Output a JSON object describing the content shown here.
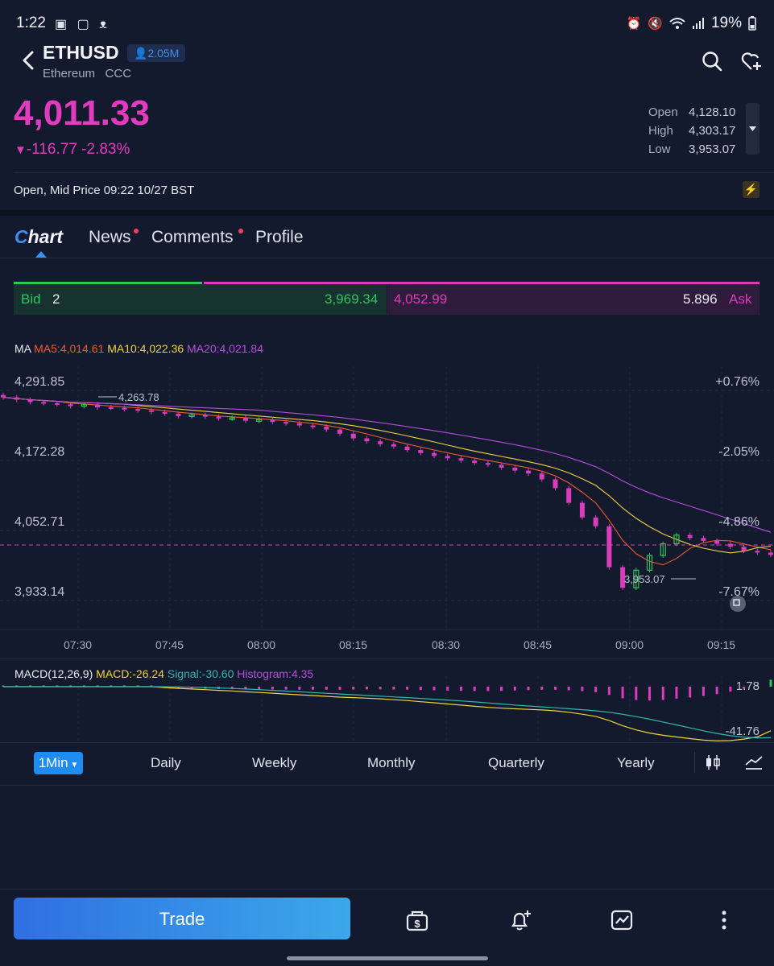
{
  "status_bar": {
    "time": "1:22",
    "left_icons": "▣ ▢ ᴥ",
    "battery": "19%"
  },
  "header": {
    "symbol": "ETHUSD",
    "followers": "2.05M",
    "subtitle": "Ethereum   CCC"
  },
  "quote": {
    "price": "4,011.33",
    "change": "-116.77 -2.83%",
    "open_label": "Open",
    "open": "4,128.10",
    "high_label": "High",
    "high": "4,303.17",
    "low_label": "Low",
    "low": "3,953.07",
    "market_status": "Open, Mid Price 09:22 10/27 BST"
  },
  "tabs": {
    "chart": "hart",
    "news": "News",
    "comments": "Comments",
    "profile": "Profile"
  },
  "bid_ask": {
    "bid_label": "Bid",
    "bid_size": "2",
    "bid_price": "3,969.34",
    "ask_price": "4,052.99",
    "ask_size": "5.896",
    "ask_label": "Ask"
  },
  "ma_legend": {
    "ma": "MA",
    "ma5": "MA5:4,014.61",
    "ma10": "MA10:4,022.36",
    "ma20": "MA20:4,021.84"
  },
  "chart_data": {
    "type": "candlestick",
    "y_ticks": [
      "4,291.85",
      "4,172.28",
      "4,052.71",
      "3,933.14"
    ],
    "y_pct_ticks": [
      "+0.76%",
      "-2.05%",
      "-4.86%",
      "-7.67%"
    ],
    "x_ticks": [
      "07:30",
      "07:45",
      "08:00",
      "08:15",
      "08:30",
      "08:45",
      "09:00",
      "09:15"
    ],
    "high_marker": "4,263.78",
    "low_marker": "3,953.07",
    "ylim": [
      3900,
      4320
    ],
    "close_series": [
      4280,
      4276,
      4272,
      4270,
      4268,
      4265,
      4268,
      4263,
      4262,
      4260,
      4258,
      4255,
      4252,
      4248,
      4250,
      4247,
      4244,
      4245,
      4240,
      4242,
      4238,
      4236,
      4232,
      4230,
      4225,
      4218,
      4210,
      4205,
      4200,
      4196,
      4190,
      4185,
      4180,
      4176,
      4172,
      4168,
      4165,
      4160,
      4155,
      4150,
      4140,
      4125,
      4100,
      4075,
      4060,
      3990,
      3955,
      3985,
      4010,
      4030,
      4045,
      4040,
      4035,
      4030,
      4025,
      4018,
      4015,
      4011
    ]
  },
  "macd": {
    "legend_title": "MACD(12,26,9)",
    "macd": "MACD:-26.24",
    "signal": "Signal:-30.60",
    "histogram": "Histogram:4.35",
    "top_tick": "1.78",
    "bottom_tick": "-41.76"
  },
  "periods": {
    "active": "1Min",
    "items": [
      "Daily",
      "Weekly",
      "Monthly",
      "Quarterly",
      "Yearly"
    ]
  },
  "bottom": {
    "trade": "Trade"
  },
  "colors": {
    "up": "#2fc45c",
    "down": "#d93dbb",
    "ma5": "#f05a2a",
    "ma10": "#f0d43a",
    "ma20": "#b34fd9",
    "accent": "#3f8ef1"
  }
}
